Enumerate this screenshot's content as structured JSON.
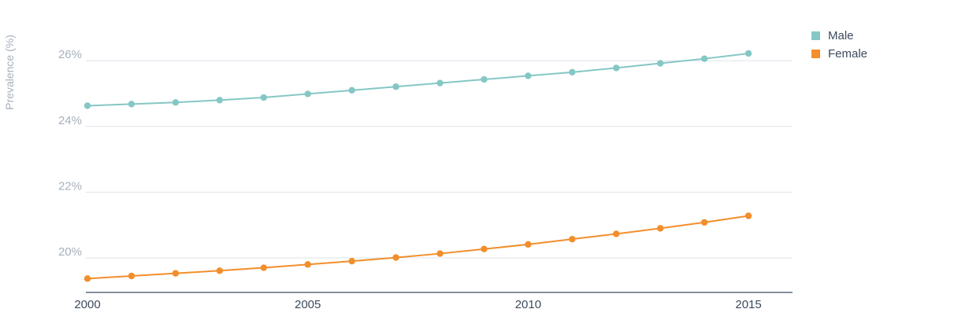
{
  "chart_data": {
    "type": "line",
    "title": "",
    "xlabel": "",
    "ylabel": "Prevalence (%)",
    "x": [
      2000,
      2001,
      2002,
      2003,
      2004,
      2005,
      2006,
      2007,
      2008,
      2009,
      2010,
      2011,
      2012,
      2013,
      2014,
      2015
    ],
    "x_ticks": [
      "2000",
      "2005",
      "2010",
      "2015"
    ],
    "y_ticks": [
      "20%",
      "22%",
      "24%",
      "26%"
    ],
    "ylim": [
      18.95,
      27.2
    ],
    "xlim": [
      2000,
      2016
    ],
    "grid": true,
    "legend_position": "top-right",
    "series": [
      {
        "name": "Male",
        "color": "#85c7c4",
        "values": [
          24.63,
          24.68,
          24.73,
          24.8,
          24.88,
          24.99,
          25.1,
          25.21,
          25.32,
          25.43,
          25.54,
          25.65,
          25.78,
          25.92,
          26.06,
          26.22
        ]
      },
      {
        "name": "Female",
        "color": "#f28e2b",
        "values": [
          19.37,
          19.45,
          19.53,
          19.61,
          19.7,
          19.8,
          19.9,
          20.01,
          20.13,
          20.27,
          20.41,
          20.57,
          20.73,
          20.9,
          21.08,
          21.28
        ]
      }
    ]
  }
}
